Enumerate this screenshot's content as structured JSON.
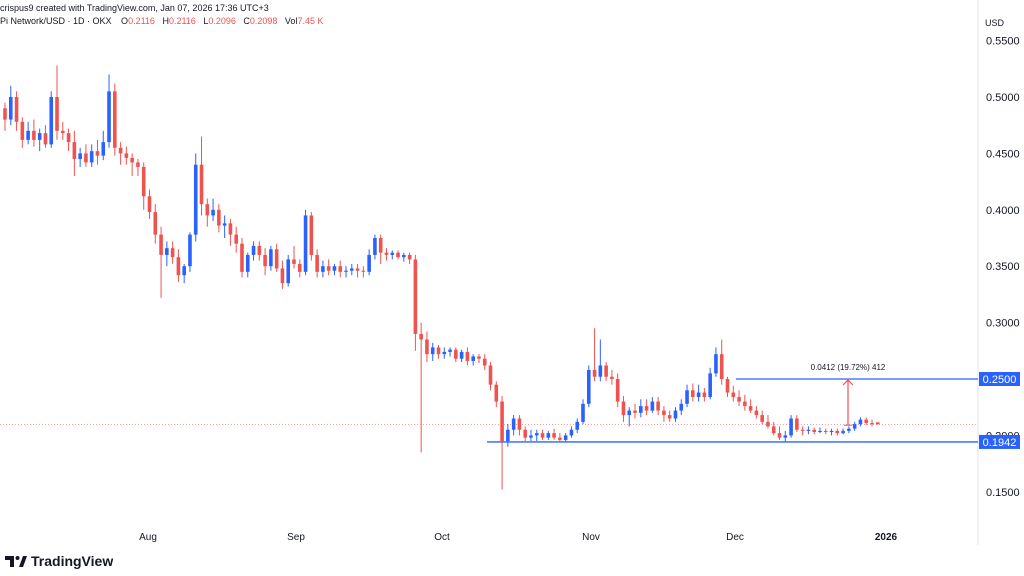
{
  "header": {
    "credit": "crispus9 created with TradingView.com, Jan 07, 2026 17:36 UTC+3",
    "symbol": "Pi Network/USD · 1D · OKX",
    "o_key": "O",
    "o_val": "0.2116",
    "h_key": "H",
    "h_val": "0.2116",
    "l_key": "L",
    "l_val": "0.2096",
    "c_key": "C",
    "c_val": "0.2098",
    "vol_key": "Vol",
    "vol_val": "7.45 K"
  },
  "currency_label": "USD",
  "brand": "TradingView",
  "colors": {
    "up": "#2962ff",
    "down": "#ef5350",
    "level": "#2962ff",
    "measure": "#ef5350",
    "last_price": "#ef5350"
  },
  "chart_data": {
    "type": "candlestick",
    "x_ticks": [
      "Aug",
      "Sep",
      "Oct",
      "Nov",
      "Dec",
      "2026"
    ],
    "y_ticks": [
      "0.5500",
      "0.5000",
      "0.4500",
      "0.4000",
      "0.3500",
      "0.3000",
      "0.2500",
      "0.2000",
      "0.1500"
    ],
    "ylim": [
      0.13,
      0.565
    ],
    "grid": false,
    "levels": [
      {
        "label": "0.2500",
        "value": 0.25
      },
      {
        "label": "0.1942",
        "value": 0.1942
      }
    ],
    "measurement": {
      "label": "0.0412 (19.72%) 412",
      "from": 0.209,
      "to": 0.25
    },
    "last_price": 0.2098,
    "candles": [
      [
        0.49,
        0.495,
        0.47,
        0.48
      ],
      [
        0.48,
        0.51,
        0.475,
        0.5
      ],
      [
        0.5,
        0.505,
        0.47,
        0.478
      ],
      [
        0.478,
        0.482,
        0.455,
        0.462
      ],
      [
        0.462,
        0.478,
        0.458,
        0.47
      ],
      [
        0.47,
        0.48,
        0.456,
        0.462
      ],
      [
        0.462,
        0.472,
        0.452,
        0.468
      ],
      [
        0.468,
        0.475,
        0.455,
        0.458
      ],
      [
        0.458,
        0.505,
        0.455,
        0.5
      ],
      [
        0.5,
        0.528,
        0.462,
        0.47
      ],
      [
        0.47,
        0.478,
        0.462,
        0.468
      ],
      [
        0.468,
        0.472,
        0.452,
        0.46
      ],
      [
        0.46,
        0.47,
        0.43,
        0.445
      ],
      [
        0.445,
        0.455,
        0.438,
        0.45
      ],
      [
        0.45,
        0.458,
        0.438,
        0.442
      ],
      [
        0.442,
        0.458,
        0.438,
        0.452
      ],
      [
        0.452,
        0.462,
        0.44,
        0.448
      ],
      [
        0.448,
        0.47,
        0.444,
        0.46
      ],
      [
        0.46,
        0.52,
        0.455,
        0.505
      ],
      [
        0.505,
        0.512,
        0.448,
        0.455
      ],
      [
        0.455,
        0.46,
        0.44,
        0.45
      ],
      [
        0.45,
        0.456,
        0.44,
        0.446
      ],
      [
        0.446,
        0.45,
        0.43,
        0.442
      ],
      [
        0.442,
        0.445,
        0.43,
        0.438
      ],
      [
        0.438,
        0.442,
        0.4,
        0.412
      ],
      [
        0.412,
        0.418,
        0.392,
        0.398
      ],
      [
        0.398,
        0.405,
        0.37,
        0.378
      ],
      [
        0.378,
        0.385,
        0.322,
        0.36
      ],
      [
        0.36,
        0.372,
        0.35,
        0.366
      ],
      [
        0.366,
        0.372,
        0.352,
        0.358
      ],
      [
        0.358,
        0.365,
        0.336,
        0.342
      ],
      [
        0.342,
        0.352,
        0.335,
        0.35
      ],
      [
        0.35,
        0.38,
        0.345,
        0.378
      ],
      [
        0.378,
        0.45,
        0.372,
        0.44
      ],
      [
        0.44,
        0.465,
        0.395,
        0.405
      ],
      [
        0.405,
        0.41,
        0.385,
        0.395
      ],
      [
        0.395,
        0.41,
        0.39,
        0.4
      ],
      [
        0.4,
        0.405,
        0.38,
        0.386
      ],
      [
        0.386,
        0.395,
        0.375,
        0.388
      ],
      [
        0.388,
        0.392,
        0.368,
        0.378
      ],
      [
        0.378,
        0.385,
        0.362,
        0.37
      ],
      [
        0.37,
        0.375,
        0.34,
        0.345
      ],
      [
        0.345,
        0.362,
        0.34,
        0.36
      ],
      [
        0.36,
        0.372,
        0.355,
        0.368
      ],
      [
        0.368,
        0.372,
        0.355,
        0.36
      ],
      [
        0.36,
        0.366,
        0.342,
        0.35
      ],
      [
        0.35,
        0.368,
        0.346,
        0.365
      ],
      [
        0.365,
        0.37,
        0.345,
        0.348
      ],
      [
        0.348,
        0.355,
        0.33,
        0.335
      ],
      [
        0.335,
        0.36,
        0.332,
        0.356
      ],
      [
        0.356,
        0.368,
        0.348,
        0.352
      ],
      [
        0.352,
        0.356,
        0.34,
        0.345
      ],
      [
        0.345,
        0.4,
        0.342,
        0.395
      ],
      [
        0.395,
        0.398,
        0.355,
        0.36
      ],
      [
        0.36,
        0.365,
        0.34,
        0.345
      ],
      [
        0.345,
        0.355,
        0.34,
        0.35
      ],
      [
        0.35,
        0.356,
        0.342,
        0.346
      ],
      [
        0.346,
        0.352,
        0.342,
        0.35
      ],
      [
        0.35,
        0.355,
        0.34,
        0.345
      ],
      [
        0.345,
        0.35,
        0.34,
        0.346
      ],
      [
        0.346,
        0.352,
        0.342,
        0.348
      ],
      [
        0.348,
        0.352,
        0.34,
        0.346
      ],
      [
        0.346,
        0.35,
        0.34,
        0.345
      ],
      [
        0.345,
        0.365,
        0.342,
        0.36
      ],
      [
        0.36,
        0.378,
        0.356,
        0.375
      ],
      [
        0.375,
        0.378,
        0.352,
        0.362
      ],
      [
        0.362,
        0.366,
        0.355,
        0.36
      ],
      [
        0.36,
        0.364,
        0.356,
        0.362
      ],
      [
        0.362,
        0.364,
        0.356,
        0.358
      ],
      [
        0.358,
        0.362,
        0.354,
        0.36
      ],
      [
        0.36,
        0.362,
        0.352,
        0.356
      ],
      [
        0.356,
        0.36,
        0.275,
        0.29
      ],
      [
        0.29,
        0.3,
        0.185,
        0.285
      ],
      [
        0.285,
        0.292,
        0.265,
        0.272
      ],
      [
        0.272,
        0.282,
        0.266,
        0.278
      ],
      [
        0.278,
        0.28,
        0.268,
        0.272
      ],
      [
        0.272,
        0.278,
        0.268,
        0.274
      ],
      [
        0.274,
        0.278,
        0.27,
        0.276
      ],
      [
        0.276,
        0.278,
        0.265,
        0.268
      ],
      [
        0.268,
        0.276,
        0.265,
        0.274
      ],
      [
        0.274,
        0.278,
        0.262,
        0.266
      ],
      [
        0.266,
        0.272,
        0.262,
        0.27
      ],
      [
        0.27,
        0.272,
        0.264,
        0.268
      ],
      [
        0.268,
        0.272,
        0.258,
        0.262
      ],
      [
        0.262,
        0.265,
        0.24,
        0.245
      ],
      [
        0.245,
        0.248,
        0.225,
        0.23
      ],
      [
        0.23,
        0.235,
        0.152,
        0.195
      ],
      [
        0.195,
        0.21,
        0.19,
        0.205
      ],
      [
        0.205,
        0.218,
        0.2,
        0.215
      ],
      [
        0.215,
        0.218,
        0.2,
        0.205
      ],
      [
        0.205,
        0.208,
        0.195,
        0.198
      ],
      [
        0.198,
        0.205,
        0.195,
        0.2
      ],
      [
        0.2,
        0.205,
        0.195,
        0.202
      ],
      [
        0.202,
        0.205,
        0.196,
        0.198
      ],
      [
        0.198,
        0.204,
        0.196,
        0.202
      ],
      [
        0.202,
        0.206,
        0.196,
        0.198
      ],
      [
        0.198,
        0.202,
        0.194,
        0.196
      ],
      [
        0.196,
        0.202,
        0.194,
        0.2
      ],
      [
        0.2,
        0.208,
        0.198,
        0.205
      ],
      [
        0.205,
        0.215,
        0.202,
        0.212
      ],
      [
        0.212,
        0.232,
        0.21,
        0.228
      ],
      [
        0.228,
        0.262,
        0.225,
        0.258
      ],
      [
        0.258,
        0.295,
        0.248,
        0.252
      ],
      [
        0.252,
        0.285,
        0.248,
        0.262
      ],
      [
        0.262,
        0.265,
        0.248,
        0.252
      ],
      [
        0.252,
        0.258,
        0.245,
        0.25
      ],
      [
        0.25,
        0.255,
        0.225,
        0.23
      ],
      [
        0.23,
        0.235,
        0.212,
        0.218
      ],
      [
        0.218,
        0.225,
        0.208,
        0.222
      ],
      [
        0.222,
        0.228,
        0.215,
        0.22
      ],
      [
        0.22,
        0.232,
        0.216,
        0.226
      ],
      [
        0.226,
        0.232,
        0.218,
        0.222
      ],
      [
        0.222,
        0.234,
        0.22,
        0.23
      ],
      [
        0.23,
        0.234,
        0.218,
        0.222
      ],
      [
        0.222,
        0.226,
        0.212,
        0.218
      ],
      [
        0.218,
        0.222,
        0.212,
        0.215
      ],
      [
        0.215,
        0.225,
        0.212,
        0.222
      ],
      [
        0.222,
        0.232,
        0.218,
        0.228
      ],
      [
        0.228,
        0.245,
        0.225,
        0.24
      ],
      [
        0.24,
        0.246,
        0.23,
        0.234
      ],
      [
        0.234,
        0.245,
        0.23,
        0.238
      ],
      [
        0.238,
        0.242,
        0.23,
        0.234
      ],
      [
        0.234,
        0.26,
        0.232,
        0.255
      ],
      [
        0.255,
        0.278,
        0.252,
        0.272
      ],
      [
        0.272,
        0.285,
        0.245,
        0.25
      ],
      [
        0.25,
        0.252,
        0.234,
        0.238
      ],
      [
        0.238,
        0.244,
        0.23,
        0.234
      ],
      [
        0.234,
        0.24,
        0.226,
        0.23
      ],
      [
        0.23,
        0.236,
        0.222,
        0.226
      ],
      [
        0.226,
        0.232,
        0.22,
        0.222
      ],
      [
        0.222,
        0.226,
        0.215,
        0.218
      ],
      [
        0.218,
        0.222,
        0.21,
        0.212
      ],
      [
        0.212,
        0.218,
        0.206,
        0.208
      ],
      [
        0.208,
        0.212,
        0.2,
        0.202
      ],
      [
        0.202,
        0.208,
        0.196,
        0.198
      ],
      [
        0.198,
        0.204,
        0.194,
        0.2
      ],
      [
        0.2,
        0.218,
        0.198,
        0.215
      ],
      [
        0.215,
        0.218,
        0.203,
        0.205
      ],
      [
        0.205,
        0.208,
        0.2,
        0.204
      ],
      [
        0.204,
        0.208,
        0.201,
        0.205
      ],
      [
        0.205,
        0.207,
        0.201,
        0.203
      ],
      [
        0.203,
        0.207,
        0.202,
        0.204
      ],
      [
        0.204,
        0.206,
        0.201,
        0.203
      ],
      [
        0.203,
        0.206,
        0.2,
        0.204
      ],
      [
        0.204,
        0.206,
        0.2,
        0.202
      ],
      [
        0.202,
        0.206,
        0.201,
        0.204
      ],
      [
        0.204,
        0.208,
        0.202,
        0.206
      ],
      [
        0.206,
        0.212,
        0.204,
        0.21
      ],
      [
        0.21,
        0.216,
        0.208,
        0.214
      ],
      [
        0.214,
        0.216,
        0.209,
        0.211
      ],
      [
        0.211,
        0.214,
        0.208,
        0.21
      ],
      [
        0.2116,
        0.2116,
        0.2096,
        0.2098
      ]
    ]
  }
}
